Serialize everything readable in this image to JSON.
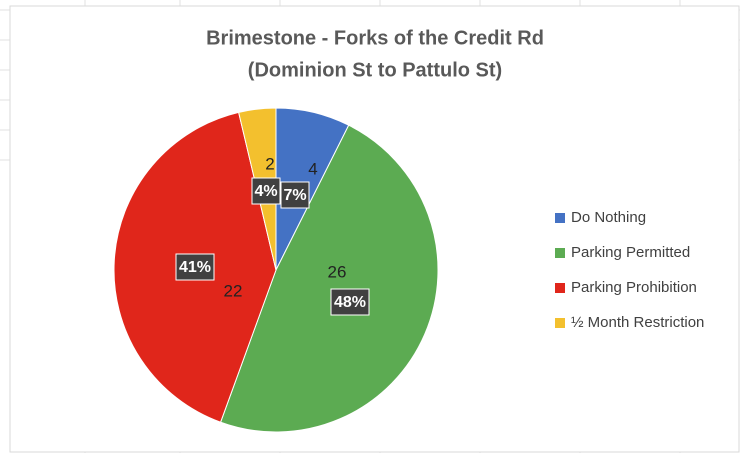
{
  "chart_data": {
    "type": "pie",
    "title": [
      "Brimestone - Forks of the Credit Rd",
      "(Dominion St to Pattulo St)"
    ],
    "categories": [
      "Do Nothing",
      "Parking Permitted",
      "Parking Prohibition",
      "½ Month Restriction"
    ],
    "values": [
      4,
      26,
      22,
      2
    ],
    "percent_labels": [
      "7%",
      "48%",
      "41%",
      "4%"
    ],
    "colors": [
      "#4472c4",
      "#5cab52",
      "#e0261b",
      "#f3c02e"
    ],
    "legend": "right"
  }
}
